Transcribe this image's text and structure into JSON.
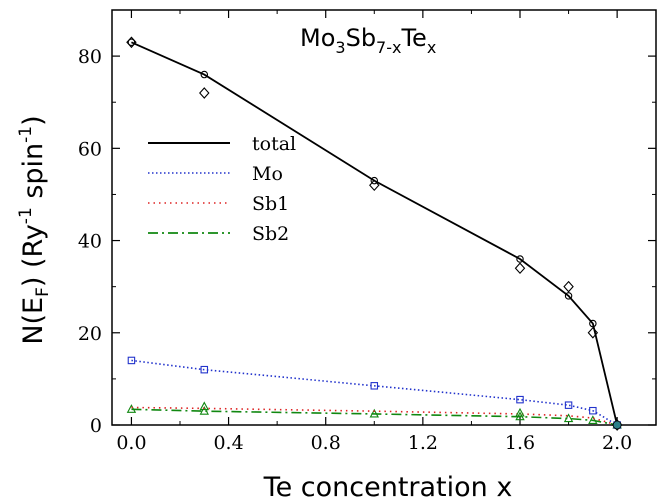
{
  "chart_data": {
    "type": "line",
    "title_parts": {
      "base": "Mo",
      "sub1": "3",
      "mid1": "Sb",
      "sub2": "7-x",
      "mid2": "Te",
      "sub3": "x"
    },
    "xlabel": "Te concentration x",
    "ylabel_parts": {
      "a": "N(E",
      "sub": "F",
      "b": ") (Ry",
      "sup1": "-1",
      "c": " spin",
      "sup2": "-1",
      "d": ")"
    },
    "xlim": [
      -0.08,
      2.16
    ],
    "ylim": [
      0,
      90
    ],
    "xticks": [
      "0.0",
      "0.4",
      "0.8",
      "1.2",
      "1.6",
      "2.0"
    ],
    "xtick_values": [
      0.0,
      0.4,
      0.8,
      1.2,
      1.6,
      2.0
    ],
    "yticks": [
      "0",
      "20",
      "40",
      "60",
      "80"
    ],
    "ytick_values": [
      0,
      20,
      40,
      60,
      80
    ],
    "legend_position": "left",
    "series": [
      {
        "name": "total",
        "color": "#000000",
        "style": "solid",
        "marker": "circle",
        "x": [
          0.0,
          0.3,
          1.0,
          1.6,
          1.8,
          1.9,
          2.0
        ],
        "values": [
          83,
          76,
          53,
          36,
          28,
          22,
          0
        ]
      },
      {
        "name": "Mo",
        "color": "#2233cc",
        "style": "dotted",
        "marker": "square",
        "x": [
          0.0,
          0.3,
          1.0,
          1.6,
          1.8,
          1.9,
          2.0
        ],
        "values": [
          14,
          12,
          8.5,
          5.5,
          4.3,
          3.1,
          0
        ]
      },
      {
        "name": "Sb1",
        "color": "#dd2222",
        "style": "dotted",
        "marker": "none",
        "x": [
          0.0,
          0.3,
          1.0,
          1.6,
          1.8,
          1.9,
          2.0
        ],
        "values": [
          3.8,
          3.6,
          3.0,
          2.4,
          2.0,
          1.5,
          0
        ]
      },
      {
        "name": "Sb2",
        "color": "#118811",
        "style": "dashdot",
        "marker": "triangle",
        "x": [
          0.0,
          0.3,
          1.0,
          1.6,
          1.8,
          1.9,
          2.0
        ],
        "values": [
          3.4,
          3.0,
          2.4,
          1.8,
          1.4,
          1.0,
          0
        ]
      }
    ],
    "extra_points": {
      "name": "diamonds",
      "color": "#000000",
      "marker": "diamond",
      "x": [
        0.0,
        0.3,
        1.0,
        1.6,
        1.8,
        1.9,
        2.0
      ],
      "values": [
        83,
        72,
        52,
        34,
        30,
        20,
        0
      ]
    },
    "extra_marker_points": [
      {
        "color": "#118811",
        "marker": "triangle",
        "x": 0.3,
        "value": 4.0
      },
      {
        "color": "#118811",
        "marker": "triangle",
        "x": 1.6,
        "value": 2.6
      }
    ]
  }
}
